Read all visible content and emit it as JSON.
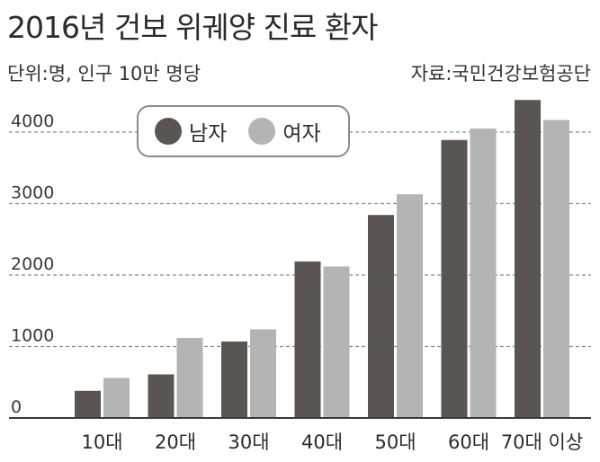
{
  "header": {
    "title": "2016년 건보 위궤양 진료 환자",
    "unit": "단위:명, 인구 10만 명당",
    "source": "자료:국민건강보험공단"
  },
  "colors": {
    "male": "#5a5551",
    "female": "#b4b4b4",
    "grid": "#8c8c8c",
    "axis": "#3a3a3a"
  },
  "chart_data": {
    "type": "bar",
    "title": "2016년 건보 위궤양 진료 환자",
    "categories": [
      "10대",
      "20대",
      "30대",
      "40대",
      "50대",
      "60대",
      "70대 이상"
    ],
    "series": [
      {
        "name": "남자",
        "values": [
          380,
          610,
          1070,
          2190,
          2840,
          3890,
          4450
        ]
      },
      {
        "name": "여자",
        "values": [
          560,
          1120,
          1240,
          2120,
          3130,
          4050,
          4170
        ]
      }
    ],
    "yticks": [
      0,
      1000,
      2000,
      3000,
      4000
    ],
    "ylim": [
      0,
      4500
    ],
    "grid": true,
    "legend_position": "top-left"
  }
}
